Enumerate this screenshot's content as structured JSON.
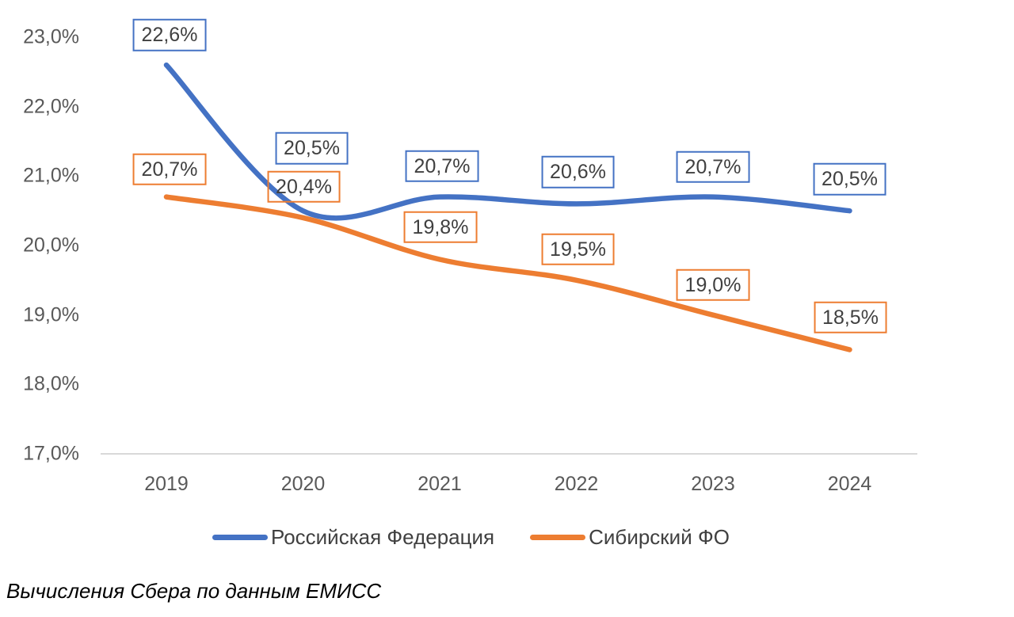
{
  "chart_data": {
    "type": "line",
    "smooth": true,
    "grid": false,
    "legend_position": "bottom",
    "x": [
      2019,
      2020,
      2021,
      2022,
      2023,
      2024
    ],
    "x_ticks": [
      "2019",
      "2020",
      "2021",
      "2022",
      "2023",
      "2024"
    ],
    "y_ticks": [
      "23,0%",
      "22,0%",
      "21,0%",
      "20,0%",
      "19,0%",
      "18,0%",
      "17,0%"
    ],
    "y_tick_values": [
      23,
      22,
      21,
      20,
      19,
      18,
      17
    ],
    "ylim": [
      17,
      23.4
    ],
    "series": [
      {
        "name": "Российская Федерация",
        "color": "#4472C4",
        "values": [
          22.6,
          20.5,
          20.7,
          20.6,
          20.7,
          20.5
        ],
        "labels": [
          "22,6%",
          "20,5%",
          "20,7%",
          "20,6%",
          "20,7%",
          "20,5%"
        ],
        "label_dx": [
          4,
          11,
          3,
          2,
          0,
          0
        ],
        "label_dy": [
          38,
          79,
          39,
          40,
          38,
          40
        ]
      },
      {
        "name": "Сибирский ФО",
        "color": "#ED7D31",
        "values": [
          20.7,
          20.4,
          19.8,
          19.5,
          19.0,
          18.5
        ],
        "labels": [
          "20,7%",
          "20,4%",
          "19,8%",
          "19,5%",
          "19,0%",
          "18,5%"
        ],
        "label_dx": [
          4,
          1,
          1,
          2,
          0,
          1
        ],
        "label_dy": [
          35,
          39,
          41,
          39,
          38,
          41
        ]
      }
    ]
  },
  "caption": "Вычисления Сбера по данным ЕМИСС",
  "colors": {
    "axis_line": "#D9D9D9",
    "tick_text": "#595959",
    "label_text": "#404040",
    "background": "#FFFFFF"
  }
}
